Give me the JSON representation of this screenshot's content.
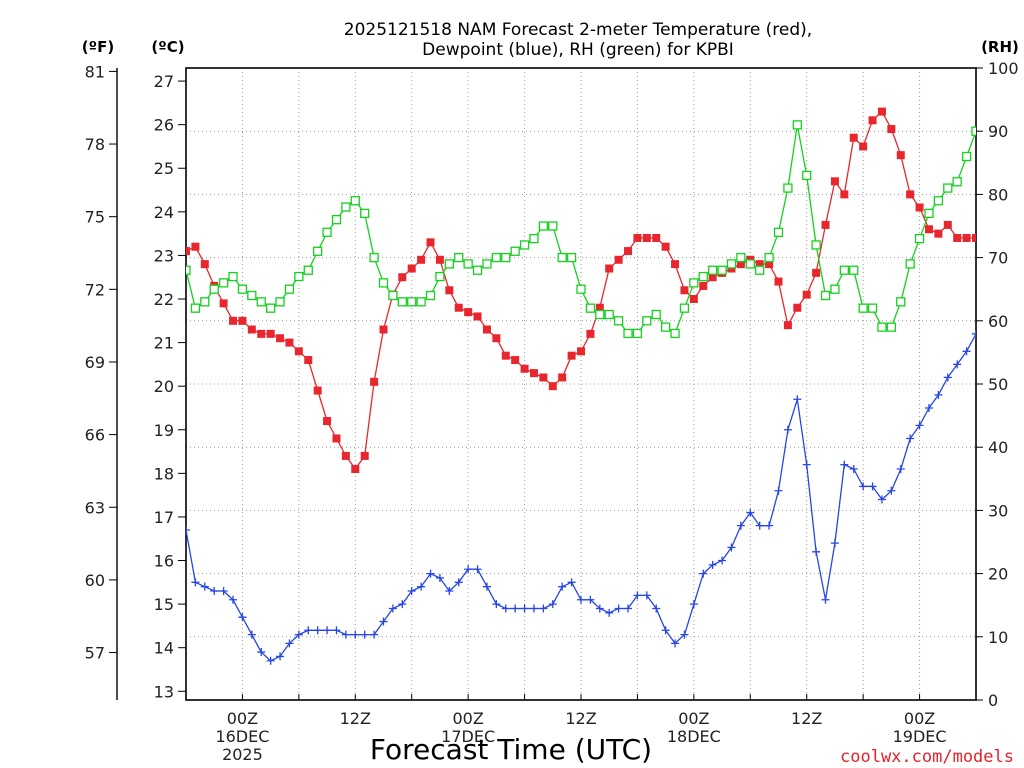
{
  "title_line1": "2025121518 NAM Forecast 2-meter Temperature (red),",
  "title_line2": "Dewpoint (blue), RH (green) for KPBI",
  "unit_f": "(ºF)",
  "unit_c": "(ºC)",
  "unit_rh": "(RH)",
  "xlabel": "Forecast Time (UTC)",
  "credit": "coolwx.com/models",
  "chart_data": {
    "type": "line",
    "title": "2025121518 NAM Forecast 2-meter Temperature (red), Dewpoint (blue), RH (green) for KPBI",
    "xlabel": "Forecast Time (UTC)",
    "x_unit": "forecast hour from 2025-12-15 18Z",
    "x": [
      0,
      1,
      2,
      3,
      4,
      5,
      6,
      7,
      8,
      9,
      10,
      11,
      12,
      13,
      14,
      15,
      16,
      17,
      18,
      19,
      20,
      21,
      22,
      23,
      24,
      25,
      26,
      27,
      28,
      29,
      30,
      31,
      32,
      33,
      34,
      35,
      36,
      37,
      38,
      39,
      40,
      41,
      42,
      43,
      44,
      45,
      46,
      47,
      48,
      49,
      50,
      51,
      52,
      53,
      54,
      55,
      56,
      57,
      58,
      59,
      60,
      61,
      62,
      63,
      64,
      65,
      66,
      67,
      68,
      69,
      70,
      71,
      72,
      73,
      74,
      75,
      76,
      77,
      78,
      79,
      80,
      81,
      82,
      83,
      84
    ],
    "xlim": [
      0,
      84
    ],
    "x_ticks": [
      {
        "x": 6,
        "label": "00Z",
        "sub1": "16DEC",
        "sub2": "2025"
      },
      {
        "x": 18,
        "label": "12Z",
        "sub1": "",
        "sub2": ""
      },
      {
        "x": 30,
        "label": "00Z",
        "sub1": "17DEC",
        "sub2": ""
      },
      {
        "x": 42,
        "label": "12Z",
        "sub1": "",
        "sub2": ""
      },
      {
        "x": 54,
        "label": "00Z",
        "sub1": "18DEC",
        "sub2": ""
      },
      {
        "x": 66,
        "label": "12Z",
        "sub1": "",
        "sub2": ""
      },
      {
        "x": 78,
        "label": "00Z",
        "sub1": "19DEC",
        "sub2": ""
      }
    ],
    "y_celsius": {
      "ylim": [
        12.8,
        27.3
      ],
      "ticks": [
        13,
        14,
        15,
        16,
        17,
        18,
        19,
        20,
        21,
        22,
        23,
        24,
        25,
        26,
        27
      ]
    },
    "y_fahrenheit": {
      "ticks": [
        57,
        60,
        63,
        66,
        69,
        72,
        75,
        78,
        81
      ]
    },
    "y_rh": {
      "ylim": [
        0,
        100
      ],
      "ticks": [
        0,
        10,
        20,
        30,
        40,
        50,
        60,
        70,
        80,
        90,
        100
      ]
    },
    "grid": true,
    "series": [
      {
        "name": "Temperature (red)",
        "axis": "celsius",
        "color": "#e8262e",
        "marker": "filled-square",
        "values": [
          23.1,
          23.2,
          22.8,
          22.3,
          21.9,
          21.5,
          21.5,
          21.3,
          21.2,
          21.2,
          21.1,
          21.0,
          20.8,
          20.6,
          19.9,
          19.2,
          18.8,
          18.4,
          18.1,
          18.4,
          20.1,
          21.3,
          22.1,
          22.5,
          22.7,
          22.9,
          23.3,
          22.9,
          22.2,
          21.8,
          21.7,
          21.6,
          21.3,
          21.1,
          20.7,
          20.6,
          20.4,
          20.3,
          20.2,
          20.0,
          20.2,
          20.7,
          20.8,
          21.2,
          21.8,
          22.7,
          22.9,
          23.1,
          23.4,
          23.4,
          23.4,
          23.2,
          22.8,
          22.2,
          22.0,
          22.3,
          22.5,
          22.6,
          22.7,
          22.8,
          22.9,
          22.8,
          22.8,
          22.4,
          21.4,
          21.8,
          22.1,
          22.6,
          23.7,
          24.7,
          24.4,
          25.7,
          25.5,
          26.1,
          26.3,
          25.9,
          25.3,
          24.4,
          24.1,
          23.6,
          23.5,
          23.7,
          23.4,
          23.4,
          23.4
        ]
      },
      {
        "name": "Dewpoint (blue)",
        "axis": "celsius",
        "color": "#2646e6",
        "marker": "plus",
        "values": [
          16.7,
          15.5,
          15.4,
          15.3,
          15.3,
          15.1,
          14.7,
          14.3,
          13.9,
          13.7,
          13.8,
          14.1,
          14.3,
          14.4,
          14.4,
          14.4,
          14.4,
          14.3,
          14.3,
          14.3,
          14.3,
          14.6,
          14.9,
          15.0,
          15.3,
          15.4,
          15.7,
          15.6,
          15.3,
          15.5,
          15.8,
          15.8,
          15.4,
          15.0,
          14.9,
          14.9,
          14.9,
          14.9,
          14.9,
          15.0,
          15.4,
          15.5,
          15.1,
          15.1,
          14.9,
          14.8,
          14.9,
          14.9,
          15.2,
          15.2,
          14.9,
          14.4,
          14.1,
          14.3,
          15.0,
          15.7,
          15.9,
          16.0,
          16.3,
          16.8,
          17.1,
          16.8,
          16.8,
          17.6,
          19.0,
          19.7,
          18.2,
          16.2,
          15.1,
          16.4,
          18.2,
          18.1,
          17.7,
          17.7,
          17.4,
          17.6,
          18.1,
          18.8,
          19.1,
          19.5,
          19.8,
          20.2,
          20.5,
          20.8,
          21.2
        ]
      },
      {
        "name": "RH (green)",
        "axis": "rh",
        "color": "#14d21e",
        "marker": "open-square",
        "values": [
          68,
          62,
          63,
          65,
          66,
          67,
          65,
          64,
          63,
          62,
          63,
          65,
          67,
          68,
          71,
          74,
          76,
          78,
          79,
          77,
          70,
          66,
          64,
          63,
          63,
          63,
          64,
          67,
          69,
          70,
          69,
          68,
          69,
          70,
          70,
          71,
          72,
          73,
          75,
          75,
          70,
          70,
          65,
          62,
          61,
          61,
          60,
          58,
          58,
          60,
          61,
          59,
          58,
          62,
          66,
          67,
          68,
          68,
          69,
          70,
          69,
          68,
          70,
          74,
          81,
          91,
          83,
          72,
          64,
          65,
          68,
          68,
          62,
          62,
          59,
          59,
          63,
          69,
          73,
          77,
          79,
          81,
          82,
          86,
          90
        ]
      }
    ]
  }
}
